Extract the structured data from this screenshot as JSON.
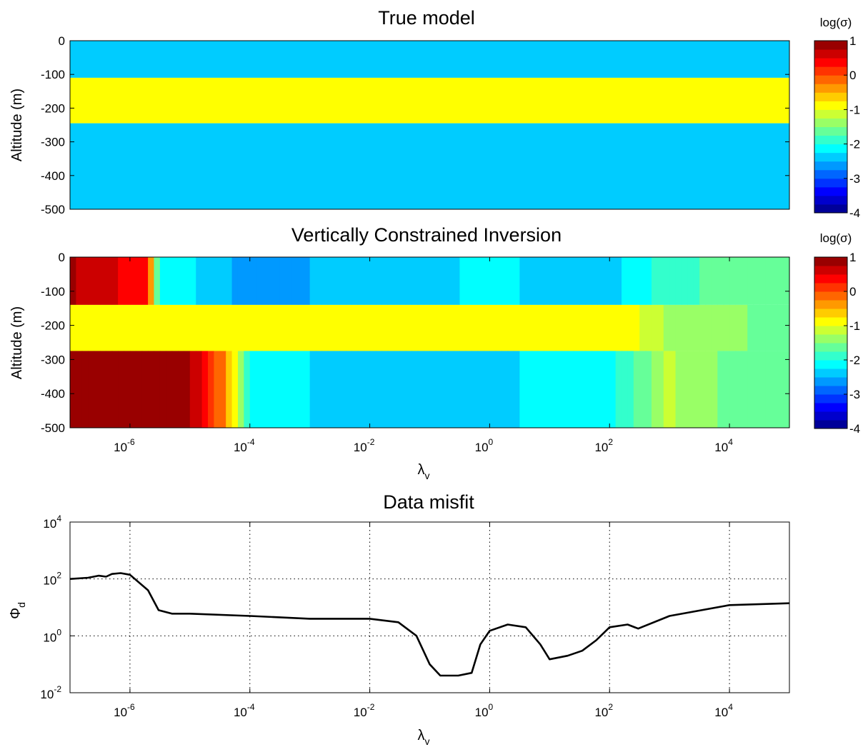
{
  "panels": {
    "true_model": {
      "title": "True model",
      "ylabel": "Altitude (m)",
      "yticks": [
        "0",
        "-100",
        "-200",
        "-300",
        "-400",
        "-500"
      ],
      "colorbar_label": "log(σ)",
      "colorbar_ticks": [
        "1",
        "0",
        "-1",
        "-2",
        "-3",
        "-4"
      ]
    },
    "vci": {
      "title": "Vertically Constrained Inversion",
      "ylabel": "Altitude (m)",
      "yticks": [
        "0",
        "-100",
        "-200",
        "-300",
        "-400",
        "-500"
      ],
      "xticks": [
        {
          "base": "10",
          "exp": "-6"
        },
        {
          "base": "10",
          "exp": "-4"
        },
        {
          "base": "10",
          "exp": "-2"
        },
        {
          "base": "10",
          "exp": "0"
        },
        {
          "base": "10",
          "exp": "2"
        },
        {
          "base": "10",
          "exp": "4"
        }
      ],
      "xlabel": {
        "main": "λ",
        "sub": "v"
      },
      "colorbar_label": "log(σ)",
      "colorbar_ticks": [
        "1",
        "0",
        "-1",
        "-2",
        "-3",
        "-4"
      ]
    },
    "misfit": {
      "title": "Data misfit",
      "ylabel": {
        "main": "Φ",
        "sub": "d"
      },
      "yticks": [
        {
          "base": "10",
          "exp": "4"
        },
        {
          "base": "10",
          "exp": "2"
        },
        {
          "base": "10",
          "exp": "0"
        },
        {
          "base": "10",
          "exp": "-2"
        }
      ],
      "xticks": [
        {
          "base": "10",
          "exp": "-6"
        },
        {
          "base": "10",
          "exp": "-4"
        },
        {
          "base": "10",
          "exp": "-2"
        },
        {
          "base": "10",
          "exp": "0"
        },
        {
          "base": "10",
          "exp": "2"
        },
        {
          "base": "10",
          "exp": "4"
        }
      ],
      "xlabel": {
        "main": "λ",
        "sub": "v"
      }
    }
  },
  "chart_data": [
    {
      "type": "heatmap",
      "title": "True model",
      "ylabel": "Altitude (m)",
      "ylim": [
        -500,
        0
      ],
      "colorbar": {
        "label": "log(σ)",
        "range": [
          -4,
          1
        ],
        "colormap": "jet",
        "levels": 20
      },
      "layers": [
        {
          "top": 0,
          "bottom": -110,
          "log_sigma": -2.3
        },
        {
          "top": -110,
          "bottom": -245,
          "log_sigma": -0.8
        },
        {
          "top": -245,
          "bottom": -500,
          "log_sigma": -2.3
        }
      ]
    },
    {
      "type": "heatmap",
      "title": "Vertically Constrained Inversion",
      "xlabel": "λv",
      "ylabel": "Altitude (m)",
      "x_scale": "log",
      "xlim": [
        1e-07,
        100000.0
      ],
      "ylim": [
        -500,
        0
      ],
      "colorbar": {
        "label": "log(σ)",
        "range": [
          -4,
          1
        ],
        "colormap": "jet",
        "levels": 20
      },
      "bands": [
        {
          "top": 0,
          "bottom": -140,
          "log_sigma": [
            [
              1e-07,
              0.8
            ],
            [
              2e-06,
              0.3
            ],
            [
              3e-06,
              -2.0
            ],
            [
              0.0001,
              -2.6
            ],
            [
              1,
              -2.2
            ],
            [
              100.0,
              -2.4
            ],
            [
              1000.0,
              -1.8
            ],
            [
              100000.0,
              -1.6
            ]
          ]
        },
        {
          "top": -140,
          "bottom": -275,
          "log_sigma": [
            [
              1e-07,
              -0.8
            ],
            [
              100.0,
              -0.8
            ],
            [
              300.0,
              -1.0
            ],
            [
              1000.0,
              -1.3
            ],
            [
              100000.0,
              -1.6
            ]
          ]
        },
        {
          "top": -275,
          "bottom": -500,
          "log_sigma": [
            [
              1e-07,
              1.0
            ],
            [
              1e-05,
              0.8
            ],
            [
              4e-05,
              -0.3
            ],
            [
              0.0001,
              -2.0
            ],
            [
              0.01,
              -2.5
            ],
            [
              1,
              -2.3
            ],
            [
              100.0,
              -2.1
            ],
            [
              1000.0,
              -1.2
            ],
            [
              10000.0,
              -1.6
            ],
            [
              100000.0,
              -1.6
            ]
          ]
        }
      ]
    },
    {
      "type": "line",
      "title": "Data misfit",
      "xlabel": "λv",
      "ylabel": "Φd",
      "x_scale": "log",
      "y_scale": "log",
      "xlim": [
        1e-07,
        100000.0
      ],
      "ylim": [
        0.01,
        10000
      ],
      "grid": true,
      "x": [
        1e-07,
        2e-07,
        3e-07,
        4e-07,
        5e-07,
        7e-07,
        1e-06,
        2e-06,
        3e-06,
        5e-06,
        1e-05,
        0.0001,
        0.001,
        0.01,
        0.03,
        0.06,
        0.1,
        0.15,
        0.3,
        0.5,
        0.7,
        1,
        2,
        4,
        7,
        10,
        20,
        35,
        60,
        100,
        200,
        300,
        1000,
        10000,
        100000
      ],
      "y": [
        100,
        110,
        130,
        120,
        150,
        160,
        140,
        40,
        8,
        6,
        6,
        5,
        4,
        4,
        3,
        1,
        0.1,
        0.04,
        0.04,
        0.05,
        0.5,
        1.5,
        2.5,
        2,
        0.5,
        0.15,
        0.2,
        0.3,
        0.7,
        2,
        2.5,
        1.8,
        5,
        12,
        14
      ]
    }
  ]
}
